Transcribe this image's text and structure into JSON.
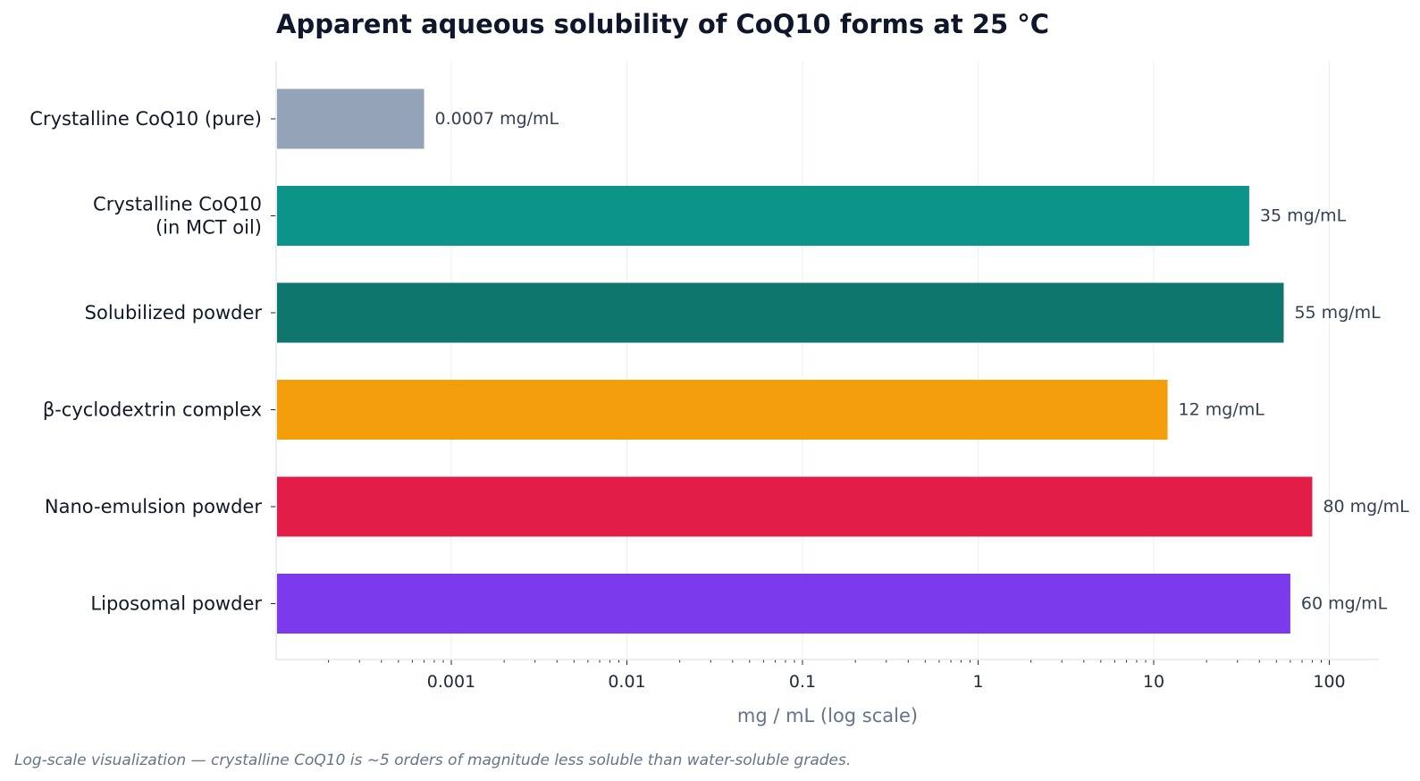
{
  "chart_data": {
    "type": "bar",
    "orientation": "horizontal",
    "title": "Apparent aqueous solubility of CoQ10 forms at 25 °C",
    "xlabel": "mg / mL (log scale)",
    "ylabel": "",
    "x_scale": "log",
    "xlim": [
      0.0001,
      200
    ],
    "x_ticks": [
      {
        "value": 0.001,
        "label": "0.001"
      },
      {
        "value": 0.01,
        "label": "0.01"
      },
      {
        "value": 0.1,
        "label": "0.1"
      },
      {
        "value": 1,
        "label": "1"
      },
      {
        "value": 10,
        "label": "10"
      },
      {
        "value": 100,
        "label": "100"
      }
    ],
    "grid": "vertical major gridlines",
    "legend": "none",
    "categories": [
      [
        "Crystalline CoQ10 (pure)"
      ],
      [
        "Crystalline CoQ10",
        "(in MCT oil)"
      ],
      [
        "Solubilized powder"
      ],
      [
        "β-cyclodextrin complex"
      ],
      [
        "Nano-emulsion powder"
      ],
      [
        "Liposomal powder"
      ]
    ],
    "values": [
      0.0007,
      35,
      55,
      12,
      80,
      60
    ],
    "value_labels": [
      "0.0007 mg/mL",
      "35 mg/mL",
      "55 mg/mL",
      "12 mg/mL",
      "80 mg/mL",
      "60 mg/mL"
    ],
    "colors": [
      "#94a3b8",
      "#0d9488",
      "#0f766e",
      "#f59e0b",
      "#e11d48",
      "#7c3aed"
    ],
    "footnote": "Log-scale visualization — crystalline CoQ10 is ~5 orders of magnitude less soluble than water-soluble grades."
  }
}
